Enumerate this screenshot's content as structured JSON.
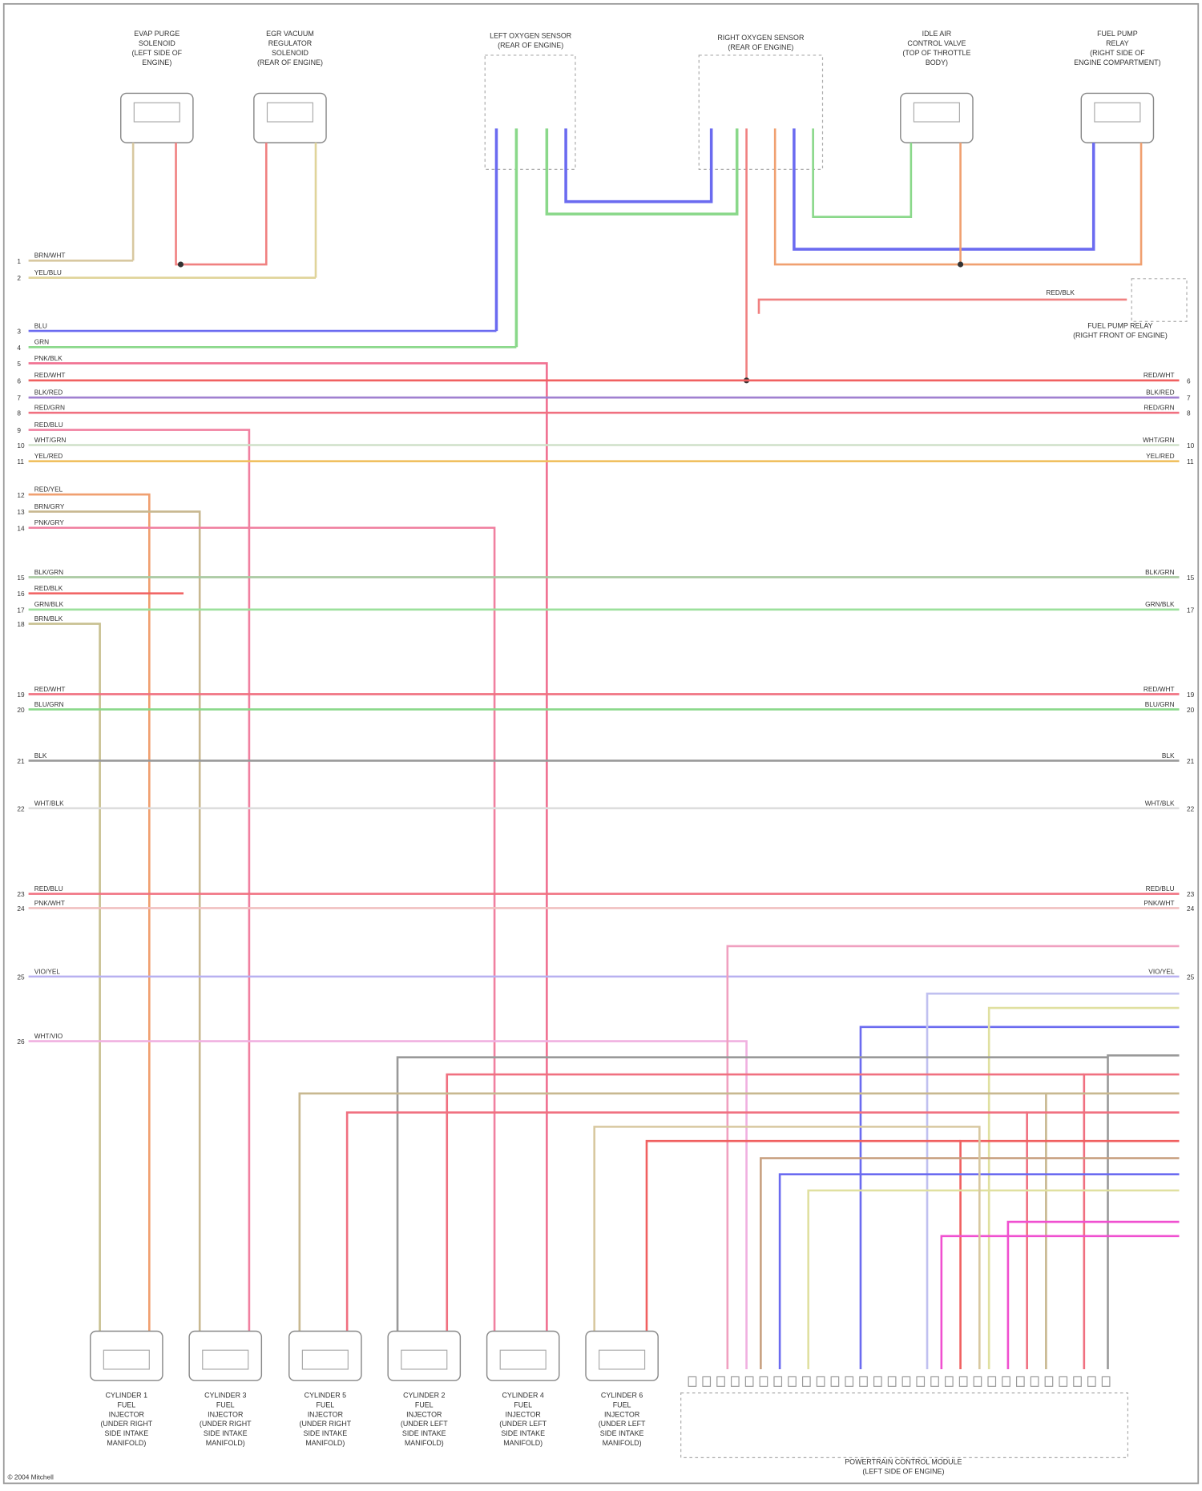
{
  "top_components": [
    {
      "label": [
        "EVAP PURGE",
        "SOLENOID",
        "(LEFT SIDE OF",
        "ENGINE)"
      ]
    },
    {
      "label": [
        "EGR VACUUM",
        "REGULATOR",
        "SOLENOID",
        "(REAR OF ENGINE)"
      ]
    },
    {
      "label": [
        "LEFT OXYGEN SENSOR",
        "(REAR OF ENGINE)"
      ]
    },
    {
      "label": [
        "RIGHT OXYGEN SENSOR",
        "(REAR OF ENGINE)"
      ]
    },
    {
      "label": [
        "IDLE AIR",
        "CONTROL VALVE",
        "(TOP OF THROTTLE",
        "BODY)"
      ]
    },
    {
      "label": [
        "FUEL PUMP",
        "RELAY",
        "(RIGHT SIDE OF",
        "ENGINE COMPARTMENT)"
      ]
    }
  ],
  "relay": {
    "label": [
      "FUEL PUMP RELAY",
      "(RIGHT FRONT OF ENGINE)"
    ],
    "wire": "RED/BLK"
  },
  "wires": [
    {
      "pin": "1",
      "code": "BRN/WHT"
    },
    {
      "pin": "2",
      "code": "YEL/BLU"
    },
    {
      "pin": "3",
      "code": "BLU"
    },
    {
      "pin": "4",
      "code": "GRN"
    },
    {
      "pin": "5",
      "code": "PNK/BLK"
    },
    {
      "pin": "6",
      "code": "RED/WHT"
    },
    {
      "pin": "7",
      "code": "BLK/RED"
    },
    {
      "pin": "8",
      "code": "RED/GRN"
    },
    {
      "pin": "9",
      "code": "RED/BLU"
    },
    {
      "pin": "10",
      "code": "WHT/GRN"
    },
    {
      "pin": "11",
      "code": "YEL/RED"
    },
    {
      "pin": "12",
      "code": "RED/YEL"
    },
    {
      "pin": "13",
      "code": "BRN/GRY"
    },
    {
      "pin": "14",
      "code": "PNK/GRY"
    },
    {
      "pin": "15",
      "code": "BLK/GRN"
    },
    {
      "pin": "16",
      "code": "RED/BLK"
    },
    {
      "pin": "17",
      "code": "GRN/BLK"
    },
    {
      "pin": "18",
      "code": "BRN/BLK"
    },
    {
      "pin": "19",
      "code": "RED/WHT"
    },
    {
      "pin": "20",
      "code": "BLU/GRN"
    },
    {
      "pin": "21",
      "code": "BLK"
    },
    {
      "pin": "22",
      "code": "WHT/BLK"
    },
    {
      "pin": "23",
      "code": "RED/BLU"
    },
    {
      "pin": "24",
      "code": "PNK/WHT"
    },
    {
      "pin": "25",
      "code": "VIO/YEL"
    },
    {
      "pin": "26",
      "code": "WHT/VIO"
    }
  ],
  "injectors": [
    {
      "label": [
        "CYLINDER 1",
        "FUEL",
        "INJECTOR",
        "(UNDER RIGHT",
        "SIDE INTAKE",
        "MANIFOLD)"
      ]
    },
    {
      "label": [
        "CYLINDER 3",
        "FUEL",
        "INJECTOR",
        "(UNDER RIGHT",
        "SIDE INTAKE",
        "MANIFOLD)"
      ]
    },
    {
      "label": [
        "CYLINDER 5",
        "FUEL",
        "INJECTOR",
        "(UNDER RIGHT",
        "SIDE INTAKE",
        "MANIFOLD)"
      ]
    },
    {
      "label": [
        "CYLINDER 2",
        "FUEL",
        "INJECTOR",
        "(UNDER LEFT",
        "SIDE INTAKE",
        "MANIFOLD)"
      ]
    },
    {
      "label": [
        "CYLINDER 4",
        "FUEL",
        "INJECTOR",
        "(UNDER LEFT",
        "SIDE INTAKE",
        "MANIFOLD)"
      ]
    },
    {
      "label": [
        "CYLINDER 6",
        "FUEL",
        "INJECTOR",
        "(UNDER LEFT",
        "SIDE INTAKE",
        "MANIFOLD)"
      ]
    }
  ],
  "pcm": {
    "label": [
      "POWERTRAIN CONTROL MODULE",
      "(LEFT SIDE OF ENGINE)"
    ]
  },
  "footer": "© 2004 Mitchell"
}
